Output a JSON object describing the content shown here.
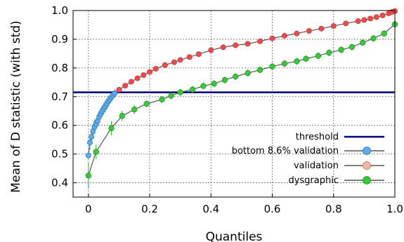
{
  "chart_data": {
    "type": "line",
    "xlabel": "Quantiles",
    "ylabel": "Mean of D statistic (with std)",
    "xlim": [
      -0.05,
      1.0
    ],
    "ylim": [
      0.35,
      1.0
    ],
    "x_ticks": [
      "0",
      "0.2",
      "0.4",
      "0.6",
      "0.8",
      "1.0"
    ],
    "y_ticks": [
      "0.4",
      "0.5",
      "0.6",
      "0.7",
      "0.8",
      "0.9",
      "1.0"
    ],
    "grid": true,
    "legend_position": "bottom-right",
    "threshold": {
      "name": "threshold",
      "value": 0.715,
      "color": "#000080"
    },
    "series": [
      {
        "name": "bottom 8.6% validation",
        "color": "#5aaee8",
        "x": [
          0.0,
          0.005,
          0.01,
          0.015,
          0.02,
          0.025,
          0.03,
          0.035,
          0.04,
          0.045,
          0.05,
          0.055,
          0.06,
          0.065,
          0.07,
          0.075,
          0.08,
          0.086
        ],
        "y": [
          0.495,
          0.54,
          0.56,
          0.58,
          0.595,
          0.605,
          0.615,
          0.63,
          0.64,
          0.65,
          0.658,
          0.666,
          0.675,
          0.683,
          0.69,
          0.698,
          0.705,
          0.712
        ],
        "std": [
          0.015,
          0.025,
          0.025,
          0.025,
          0.025,
          0.02,
          0.02,
          0.02,
          0.02,
          0.02,
          0.02,
          0.02,
          0.02,
          0.02,
          0.015,
          0.015,
          0.015,
          0.015
        ]
      },
      {
        "name": "validation",
        "color": "#ef4a4a",
        "x": [
          0.086,
          0.1,
          0.12,
          0.14,
          0.16,
          0.18,
          0.2,
          0.22,
          0.25,
          0.28,
          0.3,
          0.33,
          0.36,
          0.4,
          0.44,
          0.48,
          0.52,
          0.56,
          0.6,
          0.64,
          0.68,
          0.72,
          0.76,
          0.8,
          0.84,
          0.88,
          0.9,
          0.92,
          0.94,
          0.96,
          0.98,
          0.99,
          1.0
        ],
        "y": [
          0.712,
          0.724,
          0.738,
          0.752,
          0.764,
          0.775,
          0.786,
          0.797,
          0.81,
          0.82,
          0.828,
          0.838,
          0.848,
          0.862,
          0.872,
          0.879,
          0.884,
          0.893,
          0.903,
          0.912,
          0.92,
          0.929,
          0.937,
          0.946,
          0.955,
          0.963,
          0.967,
          0.972,
          0.977,
          0.983,
          0.99,
          0.995,
          0.998
        ]
      },
      {
        "name": "dysgraphic",
        "color": "#33cc33",
        "x": [
          0.0,
          0.025,
          0.075,
          0.11,
          0.15,
          0.19,
          0.24,
          0.27,
          0.3,
          0.34,
          0.375,
          0.41,
          0.445,
          0.48,
          0.52,
          0.56,
          0.6,
          0.64,
          0.68,
          0.71,
          0.75,
          0.785,
          0.825,
          0.86,
          0.895,
          0.93,
          0.965,
          1.0
        ],
        "y": [
          0.425,
          0.508,
          0.59,
          0.633,
          0.655,
          0.675,
          0.69,
          0.703,
          0.715,
          0.725,
          0.737,
          0.745,
          0.758,
          0.77,
          0.782,
          0.793,
          0.805,
          0.815,
          0.823,
          0.832,
          0.842,
          0.853,
          0.863,
          0.873,
          0.888,
          0.903,
          0.92,
          0.952
        ],
        "std": [
          0.045,
          0.025,
          0.025,
          0.018,
          0.015,
          0.012,
          0.012,
          0.012,
          0.012,
          0.012,
          0.012,
          0.012,
          0.012,
          0.012,
          0.012,
          0.012,
          0.012,
          0.012,
          0.012,
          0.012,
          0.012,
          0.012,
          0.012,
          0.012,
          0.012,
          0.012,
          0.012,
          0.012
        ]
      }
    ]
  }
}
